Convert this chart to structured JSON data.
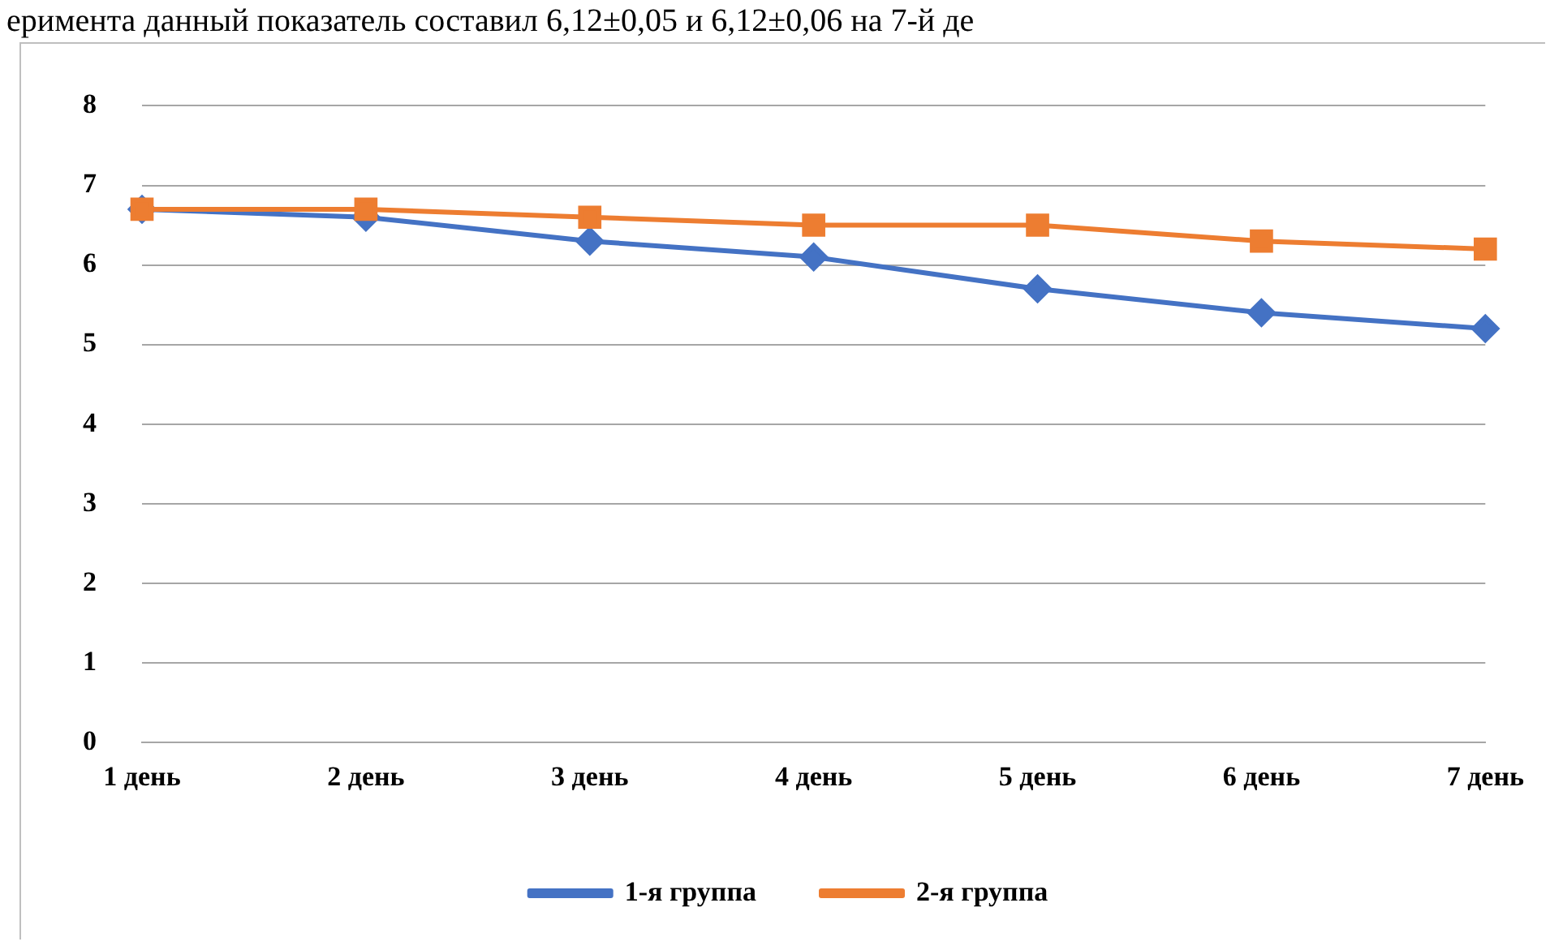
{
  "chart_data": {
    "type": "line",
    "annotations": [
      "еримента данный показатель составил 6,12±0,05 и 6,12±0,06 на 7-й де"
    ],
    "categories": [
      "1 день",
      "2 день",
      "3 день",
      "4 день",
      "5 день",
      "6 день",
      "7 день"
    ],
    "series": [
      {
        "name": "1-я группа",
        "color": "#4472c4",
        "marker": "diamond",
        "values": [
          6.7,
          6.6,
          6.3,
          6.1,
          5.7,
          5.4,
          5.2
        ]
      },
      {
        "name": "2-я группа",
        "color": "#ed7d31",
        "marker": "square",
        "values": [
          6.7,
          6.7,
          6.6,
          6.5,
          6.5,
          6.3,
          6.2
        ]
      }
    ],
    "ylim": [
      0,
      8
    ],
    "yticks": [
      0,
      1,
      2,
      3,
      4,
      5,
      6,
      7,
      8
    ],
    "grid": "y",
    "legend": "bottom",
    "line_style": "solid"
  }
}
